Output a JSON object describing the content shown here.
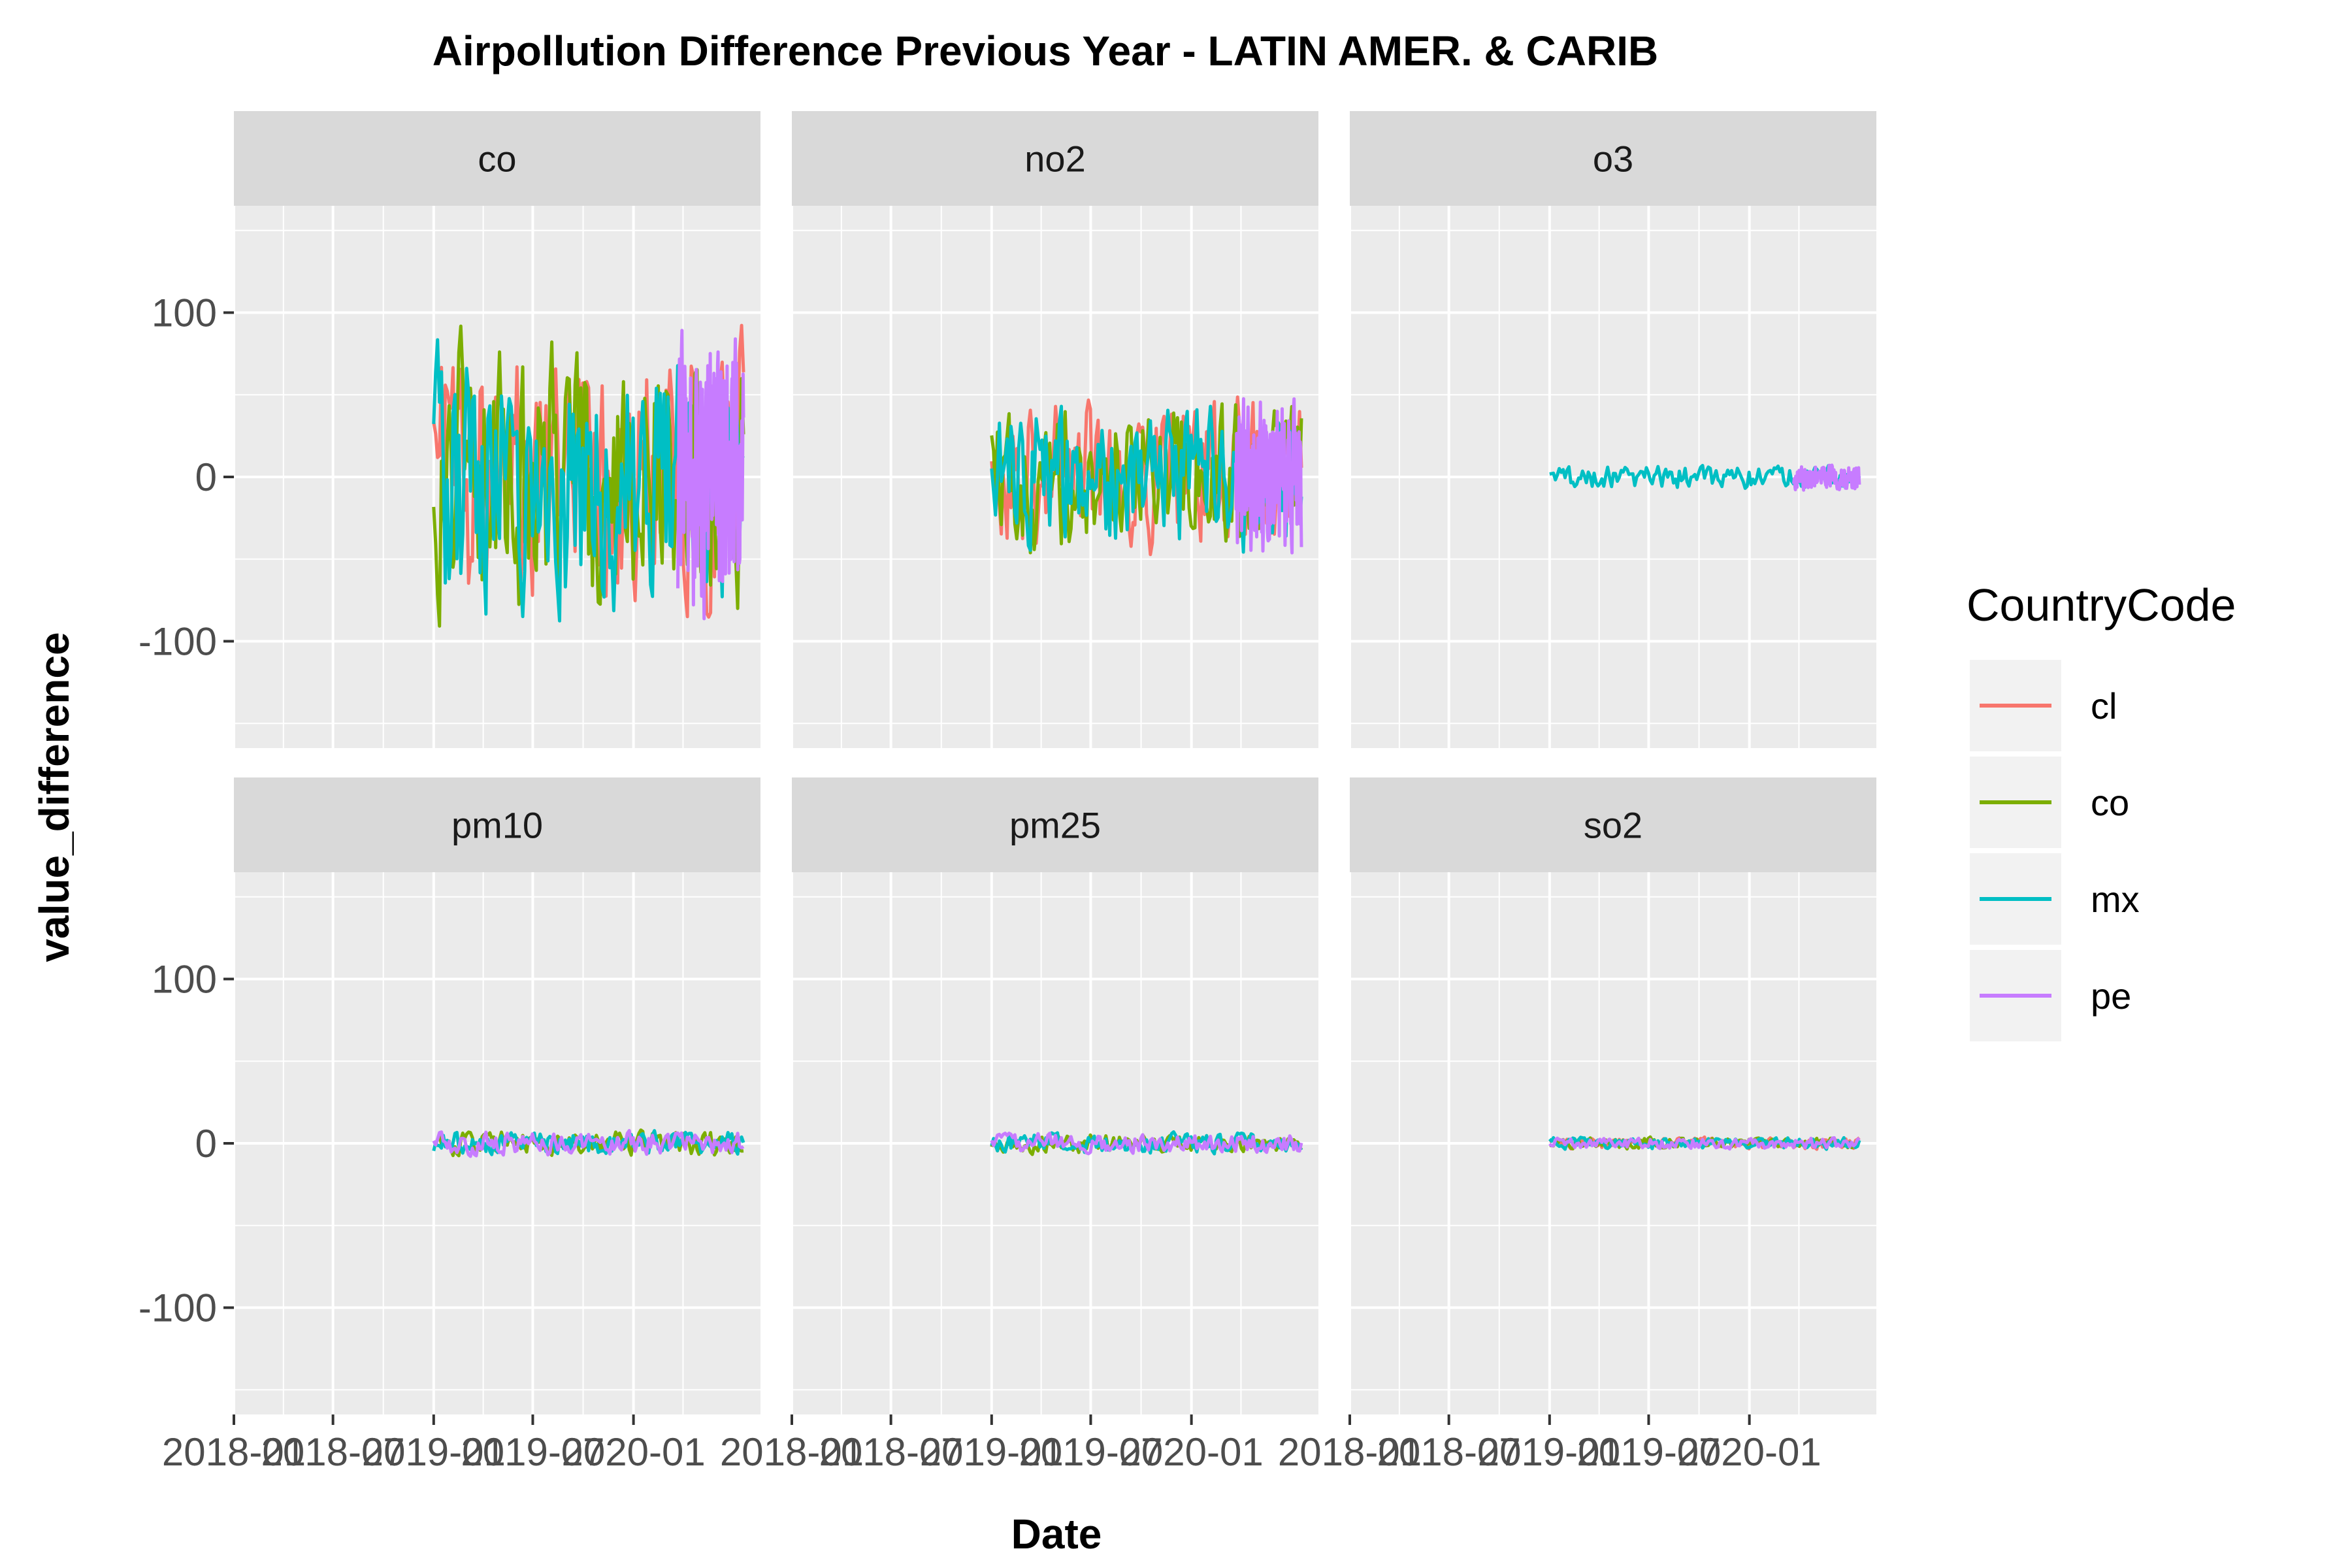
{
  "colors": {
    "cl": "#F8766D",
    "co": "#7CAE00",
    "mx": "#00BFC4",
    "pe": "#C77CFF",
    "panel_bg": "#EBEBEB",
    "strip_bg": "#D9D9D9",
    "grid": "#FFFFFF"
  },
  "chart_data": {
    "type": "line",
    "title": "Airpollution Difference Previous Year - LATIN AMER. & CARIB",
    "xlabel": "Date",
    "ylabel": "value_difference",
    "grid": true,
    "legend_position": "right",
    "legend": {
      "title": "CountryCode",
      "entries": [
        "cl",
        "co",
        "mx",
        "pe"
      ]
    },
    "ylim": [
      -165,
      165
    ],
    "y_ticks": [
      -100,
      0,
      100
    ],
    "y_tick_labels": [
      "-100",
      "0",
      "100"
    ],
    "xlim": [
      "2018-01-01",
      "2020-08-20"
    ],
    "x_ticks": [
      "2018-01-01",
      "2018-07-01",
      "2019-01-01",
      "2019-07-01",
      "2020-01-01"
    ],
    "x_tick_labels": [
      "2018-01",
      "2018-07",
      "2019-01",
      "2019-07",
      "2020-01"
    ],
    "facets": [
      {
        "name": "co",
        "x_start": "2019-01-01",
        "x_end": "2020-07-20",
        "amplitude": 68,
        "series": [
          "cl",
          "co",
          "mx",
          "pe"
        ]
      },
      {
        "name": "no2",
        "x_start": "2019-01-01",
        "x_end": "2020-07-20",
        "amplitude": 38,
        "series": [
          "cl",
          "co",
          "mx",
          "pe"
        ]
      },
      {
        "name": "o3",
        "x_start": "2019-01-01",
        "x_end": "2020-07-20",
        "amplitude": 6,
        "series": [
          "mx",
          "pe"
        ]
      },
      {
        "name": "pm10",
        "x_start": "2019-01-01",
        "x_end": "2020-07-20",
        "amplitude": 6,
        "series": [
          "co",
          "mx",
          "pe"
        ]
      },
      {
        "name": "pm25",
        "x_start": "2019-01-01",
        "x_end": "2020-07-20",
        "amplitude": 5,
        "series": [
          "co",
          "mx",
          "pe"
        ]
      },
      {
        "name": "so2",
        "x_start": "2019-01-01",
        "x_end": "2020-07-20",
        "amplitude": 3,
        "series": [
          "cl",
          "co",
          "mx",
          "pe"
        ]
      }
    ]
  }
}
